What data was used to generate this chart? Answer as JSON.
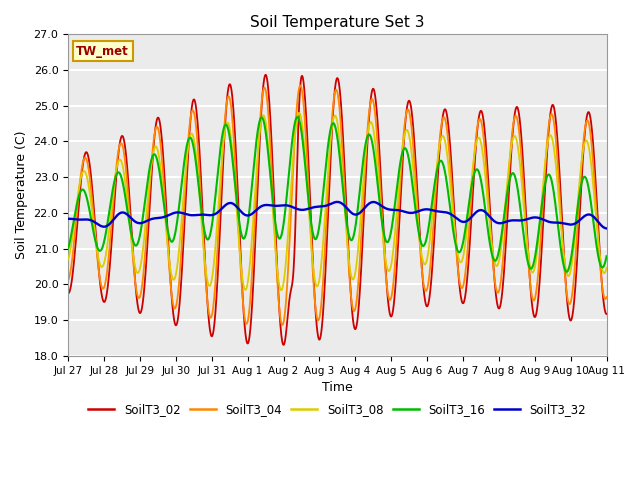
{
  "title": "Soil Temperature Set 3",
  "xlabel": "Time",
  "ylabel": "Soil Temperature (C)",
  "ylim": [
    18.0,
    27.0
  ],
  "yticks": [
    18.0,
    19.0,
    20.0,
    21.0,
    22.0,
    23.0,
    24.0,
    25.0,
    26.0,
    27.0
  ],
  "xtick_labels": [
    "Jul 27",
    "Jul 28",
    "Jul 29",
    "Jul 30",
    "Jul 31",
    "Aug 1",
    "Aug 2",
    "Aug 3",
    "Aug 4",
    "Aug 5",
    "Aug 6",
    "Aug 7",
    "Aug 8",
    "Aug 9",
    "Aug 10",
    "Aug 11"
  ],
  "annotation_text": "TW_met",
  "colors": {
    "SoilT3_02": "#cc0000",
    "SoilT3_04": "#ff8800",
    "SoilT3_08": "#ddcc00",
    "SoilT3_16": "#00bb00",
    "SoilT3_32": "#0000cc"
  },
  "bg_color": "#f0f0f0",
  "grid_color": "#ffffff"
}
